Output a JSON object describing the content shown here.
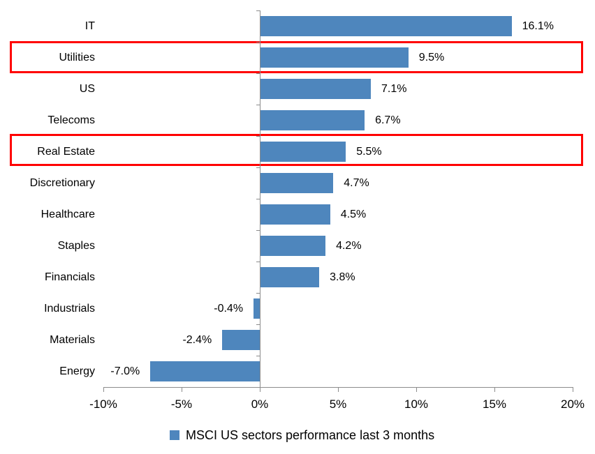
{
  "chart_data": {
    "type": "bar",
    "orientation": "horizontal",
    "title": "",
    "xlabel": "",
    "ylabel": "",
    "categories": [
      "IT",
      "Utilities",
      "US",
      "Telecoms",
      "Real Estate",
      "Discretionary",
      "Healthcare",
      "Staples",
      "Financials",
      "Industrials",
      "Materials",
      "Energy"
    ],
    "values": [
      16.1,
      9.5,
      7.1,
      6.7,
      5.5,
      4.7,
      4.5,
      4.2,
      3.8,
      -0.4,
      -2.4,
      -7.0
    ],
    "value_labels": [
      "16.1%",
      "9.5%",
      "7.1%",
      "6.7%",
      "5.5%",
      "4.7%",
      "4.5%",
      "4.2%",
      "3.8%",
      "-0.4%",
      "-2.4%",
      "-7.0%"
    ],
    "xlim": [
      -10,
      20
    ],
    "x_tick_values": [
      -10,
      -5,
      0,
      5,
      10,
      15,
      20
    ],
    "x_tick_labels": [
      "-10%",
      "-5%",
      "0%",
      "5%",
      "10%",
      "15%",
      "20%"
    ],
    "grid": false,
    "legend_position": "bottom",
    "legend_label": "MSCI US sectors performance last 3 months",
    "highlighted_categories": [
      "Utilities",
      "Real Estate"
    ],
    "colors": {
      "bar": "#4E86BD",
      "highlight_box": "#FF0000",
      "axis": "#8C8C8C",
      "text": "#000000",
      "background": "#FFFFFF"
    }
  }
}
